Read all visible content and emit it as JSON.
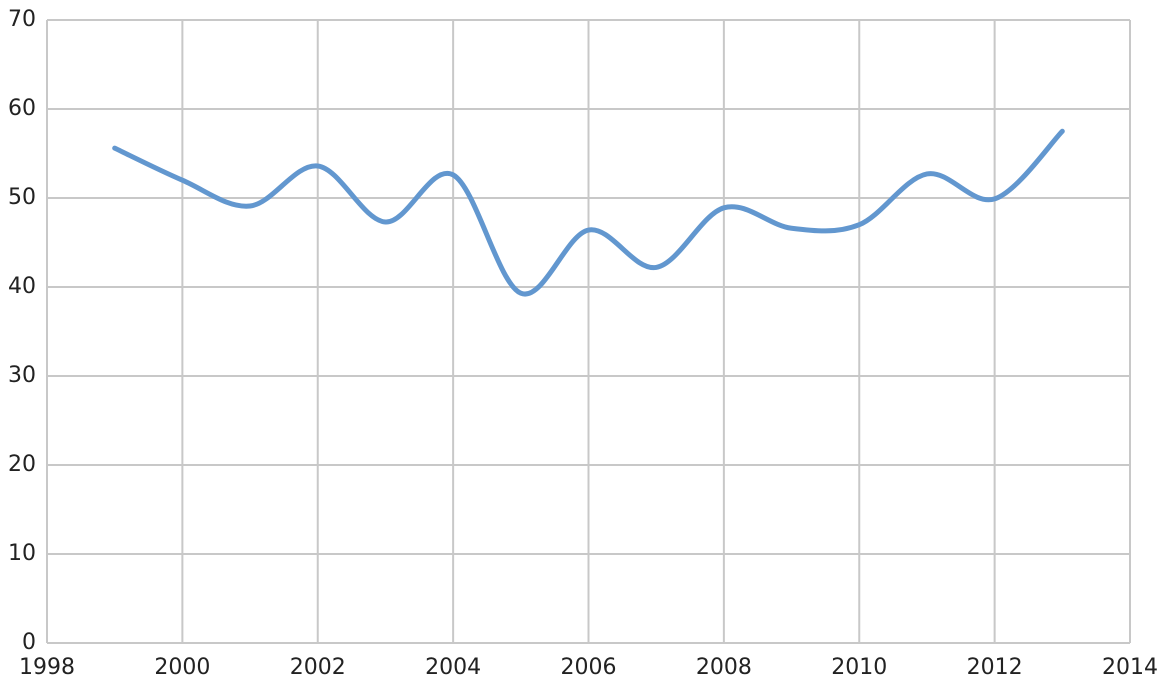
{
  "chart_data": {
    "type": "line",
    "x": [
      1999,
      2000,
      2001,
      2002,
      2003,
      2004,
      2005,
      2006,
      2007,
      2008,
      2009,
      2010,
      2011,
      2012,
      2013
    ],
    "series": [
      {
        "color": "#6297cf",
        "values": [
          55.6,
          52.0,
          49.1,
          53.6,
          47.3,
          52.6,
          39.3,
          46.4,
          42.2,
          48.9,
          46.6,
          47.0,
          52.7,
          49.9,
          57.5
        ]
      }
    ],
    "xlim": [
      1998,
      2014
    ],
    "xticks": [
      1998,
      2000,
      2002,
      2004,
      2006,
      2008,
      2010,
      2012,
      2014
    ],
    "ylim": [
      0,
      70
    ],
    "yticks": [
      0,
      10,
      20,
      30,
      40,
      50,
      60,
      70
    ],
    "grid": true,
    "smooth": true
  }
}
